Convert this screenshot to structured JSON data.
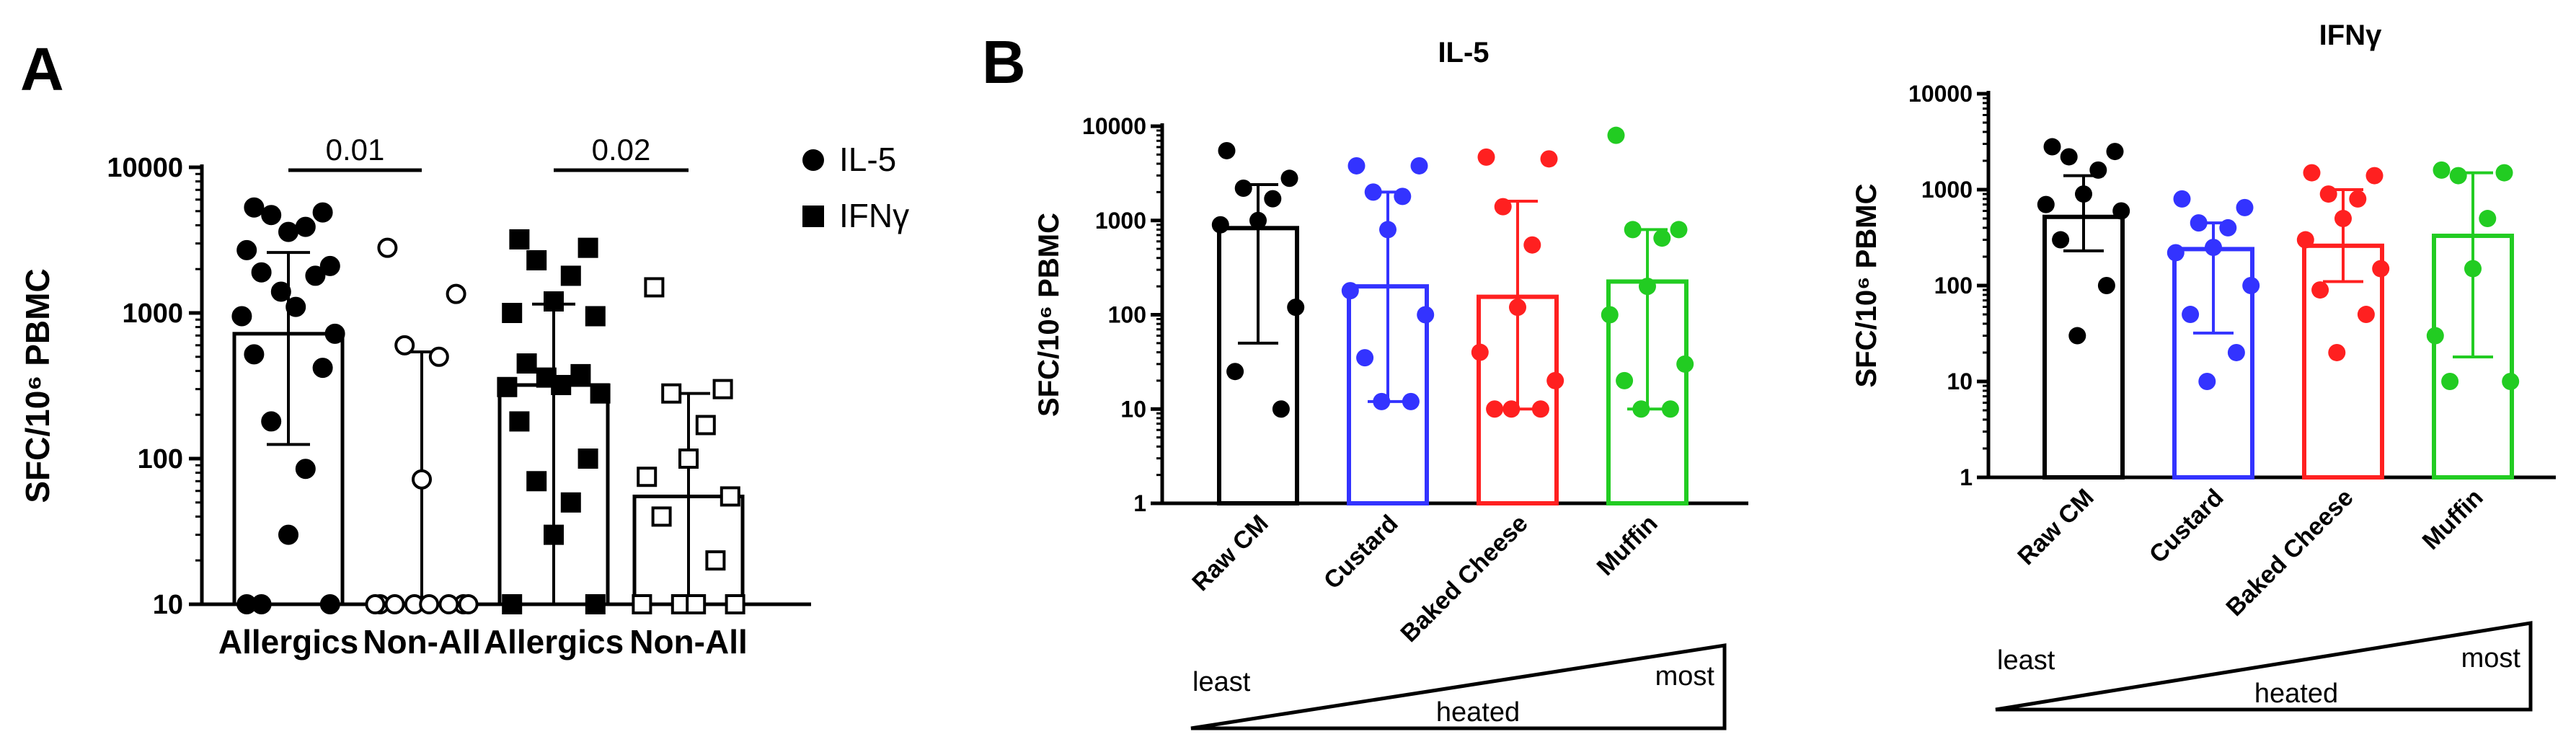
{
  "panels": {
    "a_label": "A",
    "b_label": "B"
  },
  "colors": {
    "black": "#000000",
    "blue": "#3333ff",
    "red": "#ff2020",
    "green": "#22cc22"
  },
  "chart_data": [
    {
      "id": "panel-a",
      "type": "bar",
      "title": "",
      "ylabel": "SFC/10⁶ PBMC",
      "yscale": "log",
      "ylim": [
        10,
        10000
      ],
      "yticks": [
        "10",
        "100",
        "1000",
        "10000"
      ],
      "categories": [
        "Allergics",
        "Non-All",
        "Allergics",
        "Non-All"
      ],
      "legend": {
        "placement": "top-right",
        "entries": [
          {
            "name": "IL-5",
            "marker": "circle"
          },
          {
            "name": "IFNγ",
            "marker": "square"
          }
        ]
      },
      "comparisons": [
        {
          "groups": [
            0,
            1
          ],
          "label": "0.01"
        },
        {
          "groups": [
            2,
            3
          ],
          "label": "0.02"
        }
      ],
      "groups": [
        {
          "category": "Allergics",
          "marker": "circle",
          "filled": true,
          "bar": 720,
          "err_low": 125,
          "err_high": 2600,
          "points": [
            5300,
            4900,
            4700,
            3900,
            3600,
            2700,
            2100,
            1900,
            1800,
            1400,
            1100,
            950,
            720,
            520,
            420,
            180,
            85,
            30,
            10,
            10,
            10
          ]
        },
        {
          "category": "Non-All",
          "marker": "circle",
          "filled": false,
          "bar": 10,
          "err_low": 10,
          "err_high": 540,
          "points": [
            2800,
            1350,
            600,
            500,
            72,
            10,
            10,
            10,
            10,
            10,
            10,
            10,
            10
          ]
        },
        {
          "category": "Allergics",
          "marker": "square",
          "filled": true,
          "bar": 320,
          "err_low": 10,
          "err_high": 1150,
          "points": [
            3200,
            2800,
            2300,
            1800,
            1200,
            1000,
            950,
            450,
            380,
            360,
            320,
            310,
            280,
            180,
            100,
            70,
            50,
            30,
            10,
            10
          ]
        },
        {
          "category": "Non-All",
          "marker": "square",
          "filled": false,
          "bar": 55,
          "err_low": 10,
          "err_high": 280,
          "points": [
            1500,
            300,
            280,
            170,
            100,
            75,
            55,
            40,
            20,
            10,
            10,
            10,
            10
          ]
        }
      ]
    },
    {
      "id": "panel-b-il5",
      "type": "bar",
      "title": "IL-5",
      "ylabel": "SFC/10⁶ PBMC",
      "yscale": "log",
      "ylim": [
        1,
        10000
      ],
      "yticks": [
        "1",
        "10",
        "100",
        "1000",
        "10000"
      ],
      "categories": [
        "Raw CM",
        "Custard",
        "Baked Cheese",
        "Muffin"
      ],
      "series_colors": [
        "black",
        "blue",
        "red",
        "green"
      ],
      "groups": [
        {
          "category": "Raw CM",
          "bar": 830,
          "err_low": 50,
          "err_high": 2400,
          "points": [
            5500,
            2800,
            2200,
            1700,
            1000,
            900,
            120,
            25,
            10
          ]
        },
        {
          "category": "Custard",
          "bar": 200,
          "err_low": 12,
          "err_high": 2000,
          "points": [
            3800,
            3800,
            2000,
            1800,
            800,
            180,
            100,
            35,
            12,
            12
          ]
        },
        {
          "category": "Baked Cheese",
          "bar": 155,
          "err_low": 10,
          "err_high": 1600,
          "points": [
            4700,
            4500,
            1400,
            550,
            120,
            40,
            20,
            10,
            10,
            10
          ]
        },
        {
          "category": "Muffin",
          "bar": 225,
          "err_low": 10,
          "err_high": 800,
          "points": [
            8000,
            800,
            800,
            650,
            200,
            100,
            30,
            20,
            10,
            10
          ]
        }
      ],
      "annotation": {
        "left": "least",
        "center": "heated",
        "right": "most"
      }
    },
    {
      "id": "panel-b-ifng",
      "type": "bar",
      "title": "IFNγ",
      "ylabel": "SFC/10⁶ PBMC",
      "yscale": "log",
      "ylim": [
        1,
        10000
      ],
      "yticks": [
        "1",
        "10",
        "100",
        "1000",
        "10000"
      ],
      "categories": [
        "Raw CM",
        "Custard",
        "Baked Cheese",
        "Muffin"
      ],
      "series_colors": [
        "black",
        "blue",
        "red",
        "green"
      ],
      "groups": [
        {
          "category": "Raw CM",
          "bar": 520,
          "err_low": 230,
          "err_high": 1400,
          "points": [
            2800,
            2500,
            2200,
            1600,
            900,
            700,
            600,
            300,
            100,
            30
          ]
        },
        {
          "category": "Custard",
          "bar": 240,
          "err_low": 32,
          "err_high": 450,
          "points": [
            800,
            650,
            450,
            400,
            250,
            220,
            100,
            50,
            20,
            10
          ]
        },
        {
          "category": "Baked Cheese",
          "bar": 260,
          "err_low": 110,
          "err_high": 1000,
          "points": [
            1500,
            1400,
            900,
            800,
            500,
            300,
            150,
            90,
            50,
            20
          ]
        },
        {
          "category": "Muffin",
          "bar": 330,
          "err_low": 18,
          "err_high": 1500,
          "points": [
            1600,
            1500,
            1400,
            500,
            150,
            30,
            10,
            10
          ]
        }
      ],
      "annotation": {
        "left": "least",
        "center": "heated",
        "right": "most"
      }
    }
  ]
}
